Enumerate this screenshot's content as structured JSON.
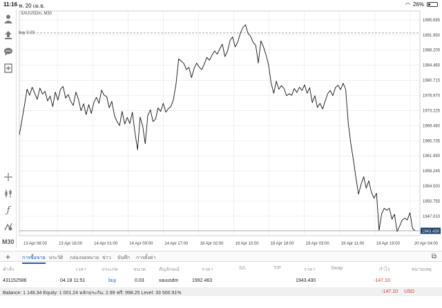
{
  "status_bar": {
    "time": "11:16",
    "date": "พ. 20 เม.ย.",
    "battery": "26%"
  },
  "chart": {
    "symbol": "XAUUSDm, M30",
    "order_line_label": "buy 0.03",
    "current_price": "1943.430",
    "timeframe": "M30",
    "colors": {
      "line": "#111111",
      "grid": "#e6e6e6",
      "order_line": "#999999",
      "price_badge": "#1a3d6b"
    }
  },
  "chart_data": {
    "type": "line",
    "series": [
      {
        "values": [
          1967.2,
          1970.8,
          1974.5,
          1978.5,
          1977.0,
          1979.0,
          1977.5,
          1976.0,
          1978.8,
          1977.3,
          1978.0,
          1975.6,
          1976.8,
          1974.2,
          1977.8,
          1975.8,
          1978.5,
          1979.2,
          1976.3,
          1977.2,
          1975.5,
          1974.5,
          1977.8,
          1976.0,
          1973.2,
          1974.9,
          1972.2,
          1974.7,
          1972.5,
          1975.2,
          1976.5,
          1975.0,
          1978.3,
          1977.0,
          1976.7,
          1973.9,
          1975.5,
          1972.0,
          1970.5,
          1969.5,
          1973.0,
          1969.9,
          1971.5,
          1970.0,
          1972.8,
          1967.8,
          1963.5,
          1971.6,
          1969.4,
          1965.0,
          1972.0,
          1973.4,
          1970.5,
          1971.1,
          1973.9,
          1973.0,
          1975.0,
          1972.8,
          1973.7,
          1974.2,
          1976.0,
          1980.0,
          1986.0,
          1985.5,
          1984.9,
          1983.4,
          1983.9,
          1981.4,
          1983.6,
          1985.0,
          1984.0,
          1983.4,
          1984.8,
          1986.4,
          1985.7,
          1987.0,
          1988.0,
          1987.2,
          1988.5,
          1989.7,
          1986.6,
          1987.9,
          1990.6,
          1991.5,
          1989.0,
          1990.2,
          1992.4,
          1993.8,
          1994.5,
          1992.4,
          1991.6,
          1990.1,
          1989.4,
          1985.0,
          1990.5,
          1989.0,
          1987.0,
          1984.5,
          1980.0,
          1977.5,
          1980.5,
          1978.5,
          1979.4,
          1978.7,
          1976.9,
          1977.4,
          1977.0,
          1978.7,
          1977.7,
          1979.0,
          1978.2,
          1979.6,
          1977.5,
          1978.9,
          1975.2,
          1976.9,
          1974.0,
          1975.0,
          1973.6,
          1975.5,
          1977.4,
          1978.2,
          1976.9,
          1978.9,
          1979.5,
          1978.4,
          1980.0,
          1978.5,
          1970.0,
          1965.0,
          1961.0,
          1956.5,
          1952.5,
          1955.0,
          1956.8,
          1954.0,
          1955.8,
          1953.0,
          1951.5,
          1952.7,
          1943.5,
          1947.6,
          1949.0,
          1948.5,
          1949.0,
          1946.3,
          1947.5,
          1943.2,
          1944.6,
          1946.1,
          1946.5,
          1946.1,
          1947.9,
          1944.0,
          1943.4
        ]
      }
    ],
    "x_tick_labels": [
      "13 Apr 08:00",
      "13 Apr 16:00",
      "14 Apr 01:00",
      "14 Apr 09:00",
      "14 Apr 17:00",
      "18 Apr 02:00",
      "18 Apr 10:00",
      "18 Apr 18:00",
      "19 Apr 03:00",
      "19 Apr 11:00",
      "19 Apr 19:00",
      "20 Apr 04:00"
    ],
    "y_ticks": [
      "1995.695",
      "1991.950",
      "1988.205",
      "1984.460",
      "1980.715",
      "1976.970",
      "1973.225",
      "1969.480",
      "1965.735",
      "1961.990",
      "1958.245",
      "1954.500",
      "1950.755",
      "1947.010"
    ],
    "ylim": [
      1942.2,
      1997.9
    ],
    "order_line_price": 1992.463,
    "grid": true
  },
  "trade_tabs": [
    "การซื้อขาย",
    "ประวัติ",
    "กล่องจดหมาย",
    "ข่าว",
    "บันทึก",
    "การตั้งค่า"
  ],
  "trade_table": {
    "headers": {
      "order": "คำสั่ง",
      "time": "เวลา",
      "type": "ประเภท",
      "volume": "ขนาด",
      "symbol": "สัญลักษณ์",
      "price": "ราคา",
      "sl": "S/L",
      "tp": "T/P",
      "current": "ราคา",
      "swap": "Swap",
      "profit": "กำไร",
      "comment": "หมายเหตุ"
    },
    "rows": [
      {
        "order": "431152586",
        "time": "04.18 11:51",
        "type": "buy",
        "volume": "0.03",
        "symbol": "xauusdm",
        "price": "1992.463",
        "current": "1943.430",
        "profit": "-147.10"
      }
    ]
  },
  "account": {
    "summary": "Balance: 1 148.34 Equity: 1 001.24 หลักประกัน: 2.99 ฟรี: 998.25 Level: 33 500.91%",
    "profit": "-147.10",
    "currency": "USD"
  },
  "icons": [
    "person-icon",
    "upload-icon",
    "chat-icon",
    "add-document-icon",
    "crosshair-icon",
    "candles-icon",
    "function-icon",
    "objects-icon",
    "plus-icon",
    "export-icon",
    "wifi-icon",
    "battery-icon"
  ]
}
